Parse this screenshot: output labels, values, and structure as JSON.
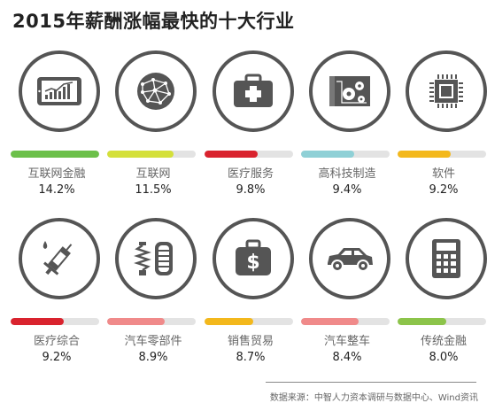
{
  "title": "2015年薪酬涨幅最快的十大行业",
  "source": "数据来源：中智人力资本调研与数据中心、Wind资讯",
  "chart_data": {
    "type": "bar",
    "title": "2015年薪酬涨幅最快的十大行业",
    "unit": "%",
    "categories": [
      "互联网金融",
      "互联网",
      "医疗服务",
      "高科技制造",
      "软件",
      "医疗综合",
      "汽车零部件",
      "销售贸易",
      "汽车整车",
      "传统金融"
    ],
    "values": [
      14.2,
      11.5,
      9.8,
      9.4,
      9.2,
      9.2,
      8.9,
      8.7,
      8.4,
      8.0
    ],
    "value_labels": [
      "14.2%",
      "11.5%",
      "9.8%",
      "9.4%",
      "9.2%",
      "9.2%",
      "8.9%",
      "8.7%",
      "8.4%",
      "8.0%"
    ],
    "colors": [
      "#6cc04a",
      "#d4e03a",
      "#d9232e",
      "#8fd0d6",
      "#f3b81c",
      "#d9232e",
      "#f08a8a",
      "#f3b81c",
      "#f08a8a",
      "#8cc44a"
    ],
    "icons": [
      "tablet-chart-icon",
      "globe-network-icon",
      "medical-kit-icon",
      "blueprint-gears-icon",
      "microchip-icon",
      "syringe-icon",
      "suspension-tire-icon",
      "money-bag-icon",
      "car-icon",
      "calculator-icon"
    ],
    "bar_fill_fractions": [
      1.0,
      0.75,
      0.6,
      0.6,
      0.6,
      0.6,
      0.65,
      0.55,
      0.65,
      0.55
    ],
    "grid": false,
    "legend": "none"
  }
}
